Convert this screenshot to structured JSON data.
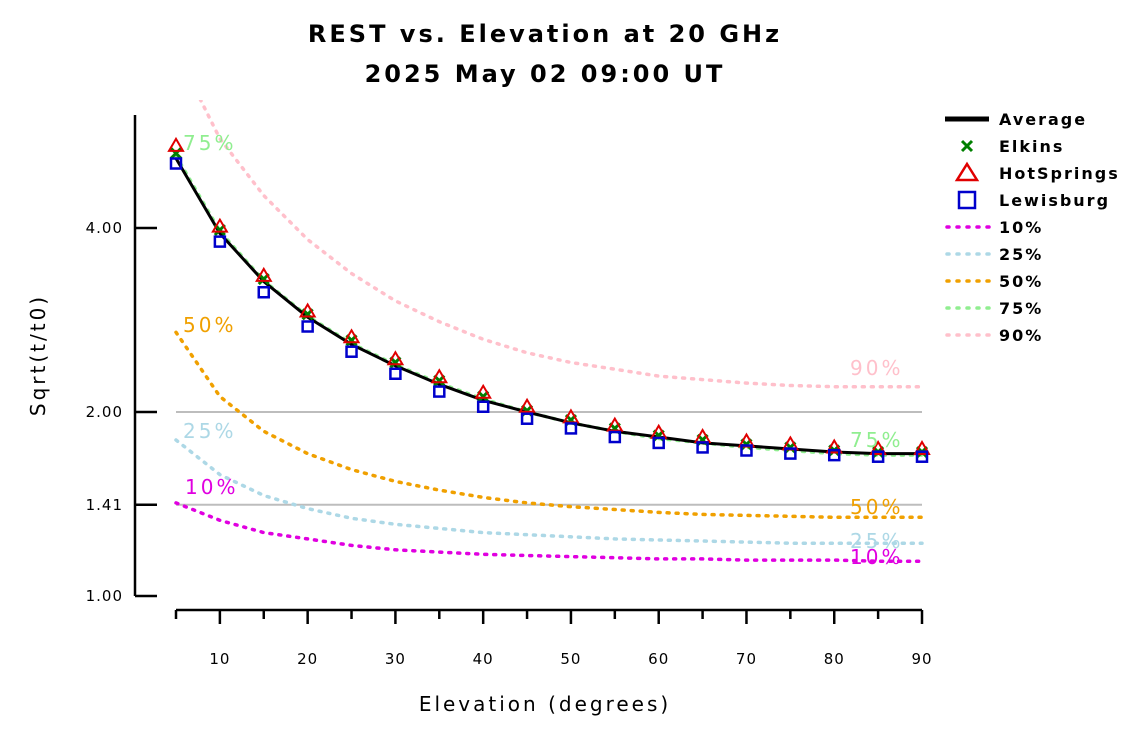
{
  "chart_data": {
    "type": "line",
    "title": "REST vs. Elevation at 20 GHz",
    "subtitle": "2025 May 02 09:00 UT",
    "xlabel": "Elevation (degrees)",
    "ylabel": "Sqrt(t/t0)",
    "y_scale": "log",
    "xlim": [
      5,
      90
    ],
    "ylim": [
      1.0,
      5.7
    ],
    "x_ticks": [
      10,
      20,
      30,
      40,
      50,
      60,
      70,
      80,
      90
    ],
    "x_tick_labels": [
      "10",
      "20",
      "30",
      "40",
      "50",
      "60",
      "70",
      "80",
      "90"
    ],
    "y_ticks": [
      1.0,
      1.41,
      2.0,
      4.0
    ],
    "y_tick_labels": [
      "1.00",
      "1.41",
      "2.00",
      "4.00"
    ],
    "reference_lines": [
      1.41,
      2.0
    ],
    "x": [
      5,
      10,
      15,
      20,
      25,
      30,
      35,
      40,
      45,
      50,
      55,
      60,
      65,
      70,
      75,
      80,
      85,
      90
    ],
    "series": [
      {
        "name": "Average",
        "style": "line",
        "color": "#000000",
        "values": [
          5.2,
          3.92,
          3.27,
          2.86,
          2.58,
          2.38,
          2.22,
          2.09,
          2.0,
          1.92,
          1.86,
          1.82,
          1.78,
          1.76,
          1.74,
          1.72,
          1.71,
          1.71
        ]
      },
      {
        "name": "Elkins",
        "style": "marker",
        "marker": "x",
        "color": "#008000",
        "values": [
          5.3,
          3.97,
          3.3,
          2.89,
          2.62,
          2.41,
          2.25,
          2.12,
          2.01,
          1.94,
          1.88,
          1.83,
          1.8,
          1.77,
          1.75,
          1.73,
          1.72,
          1.72
        ]
      },
      {
        "name": "HotSprings",
        "style": "marker",
        "marker": "triangle",
        "color": "#e00000",
        "values": [
          5.45,
          4.02,
          3.34,
          2.92,
          2.65,
          2.44,
          2.28,
          2.15,
          2.04,
          1.96,
          1.9,
          1.85,
          1.82,
          1.79,
          1.77,
          1.75,
          1.74,
          1.74
        ]
      },
      {
        "name": "Lewisburg",
        "style": "marker",
        "marker": "square",
        "color": "#0000cc",
        "values": [
          5.1,
          3.8,
          3.14,
          2.76,
          2.51,
          2.31,
          2.16,
          2.04,
          1.95,
          1.88,
          1.82,
          1.78,
          1.75,
          1.73,
          1.71,
          1.7,
          1.69,
          1.69
        ]
      },
      {
        "name": "10%",
        "style": "dotted",
        "color": "#e000e0",
        "values": [
          1.42,
          1.33,
          1.27,
          1.24,
          1.21,
          1.19,
          1.18,
          1.17,
          1.165,
          1.16,
          1.155,
          1.15,
          1.15,
          1.145,
          1.145,
          1.145,
          1.14,
          1.14
        ]
      },
      {
        "name": "25%",
        "style": "dotted",
        "color": "#add8e6",
        "values": [
          1.8,
          1.58,
          1.46,
          1.39,
          1.34,
          1.31,
          1.29,
          1.27,
          1.26,
          1.25,
          1.24,
          1.235,
          1.23,
          1.225,
          1.22,
          1.22,
          1.22,
          1.22
        ]
      },
      {
        "name": "50%",
        "style": "dotted",
        "color": "#f0a000",
        "values": [
          2.7,
          2.12,
          1.86,
          1.71,
          1.61,
          1.54,
          1.49,
          1.45,
          1.42,
          1.4,
          1.385,
          1.37,
          1.36,
          1.355,
          1.35,
          1.345,
          1.345,
          1.345
        ]
      },
      {
        "name": "75%",
        "style": "dotted",
        "color": "#90ee90",
        "values": [
          5.25,
          3.95,
          3.28,
          2.87,
          2.59,
          2.39,
          2.23,
          2.1,
          2.0,
          1.92,
          1.86,
          1.81,
          1.78,
          1.75,
          1.73,
          1.71,
          1.7,
          1.7
        ]
      },
      {
        "name": "90%",
        "style": "dotted",
        "color": "#ffc0cb",
        "values": [
          7.8,
          5.6,
          4.52,
          3.83,
          3.37,
          3.04,
          2.81,
          2.63,
          2.5,
          2.41,
          2.35,
          2.29,
          2.26,
          2.23,
          2.21,
          2.2,
          2.2,
          2.2
        ]
      }
    ],
    "annotations": [
      {
        "text": "75%",
        "series": "75%"
      },
      {
        "text": "50%",
        "series": "50%"
      },
      {
        "text": "25%",
        "series": "25%"
      },
      {
        "text": "10%",
        "series": "10%"
      },
      {
        "text": "90%",
        "series": "90%"
      },
      {
        "text": "75%",
        "series": "75%"
      },
      {
        "text": "50%",
        "series": "50%"
      },
      {
        "text": "25%",
        "series": "25%"
      },
      {
        "text": "10%",
        "series": "10%"
      }
    ],
    "legend": {
      "placement": "right"
    },
    "grid": false
  }
}
